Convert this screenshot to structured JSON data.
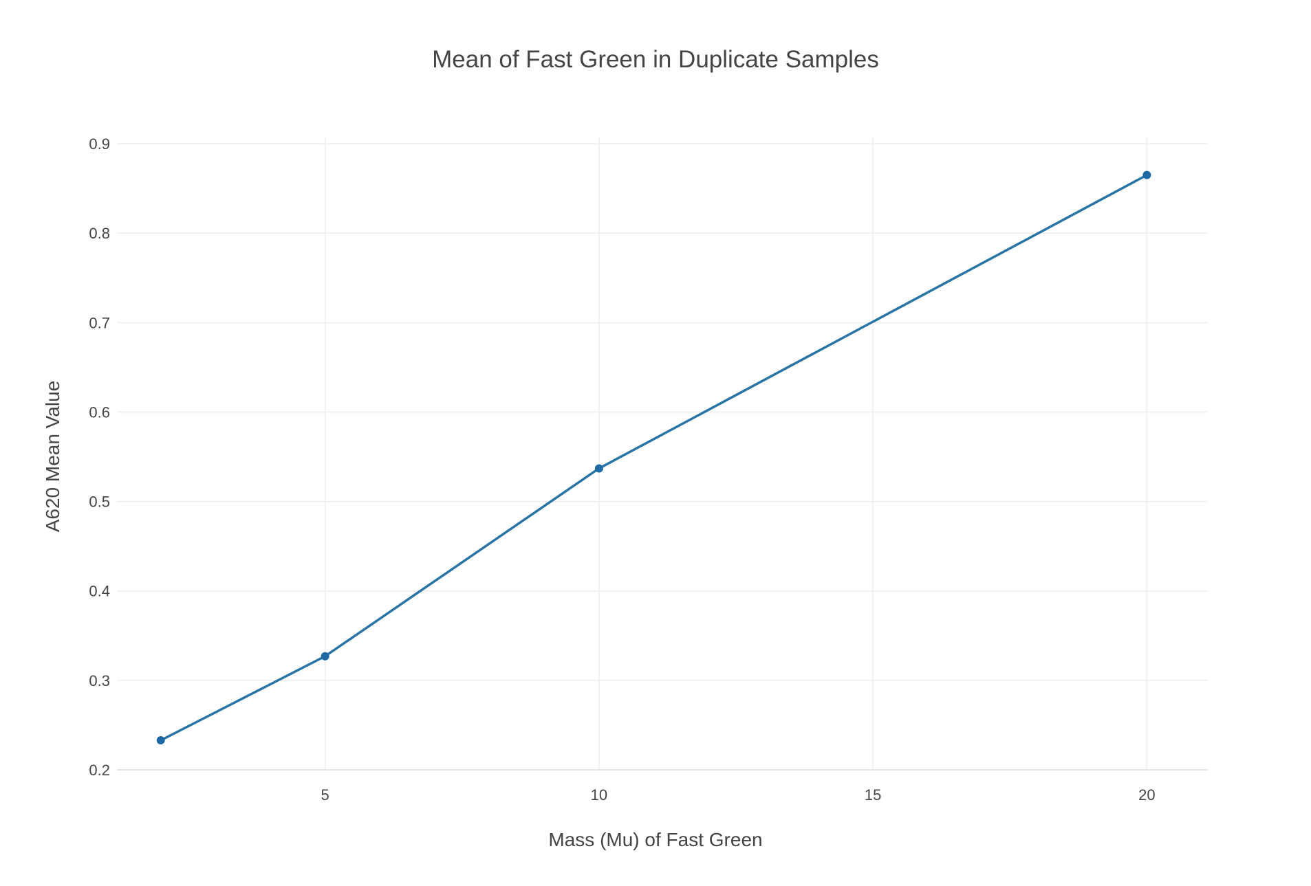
{
  "chart_data": {
    "type": "line",
    "title": "Mean of Fast Green in Duplicate Samples",
    "xlabel": "Mass (Mu) of Fast Green",
    "ylabel": "A620 Mean Value",
    "xlim": [
      1.2,
      21.1
    ],
    "ylim": [
      0.2,
      0.907
    ],
    "x_ticks": [
      5,
      10,
      15,
      20
    ],
    "y_ticks": [
      0.2,
      0.3,
      0.4,
      0.5,
      0.6,
      0.7,
      0.8,
      0.9
    ],
    "x_tick_labels": [
      "5",
      "10",
      "15",
      "20"
    ],
    "y_tick_labels": [
      "0.2",
      "0.3",
      "0.4",
      "0.5",
      "0.6",
      "0.7",
      "0.8",
      "0.9"
    ],
    "grid": true,
    "series": [
      {
        "x": [
          2,
          5,
          10,
          20
        ],
        "values": [
          0.233,
          0.327,
          0.537,
          0.865
        ],
        "color": "#1f77b4"
      }
    ],
    "colors": {
      "line": "#2874a6",
      "marker": "#1f6aa5",
      "grid": "#eeeeee",
      "zeroline": "#e5e5e5",
      "text": "#444444"
    }
  }
}
